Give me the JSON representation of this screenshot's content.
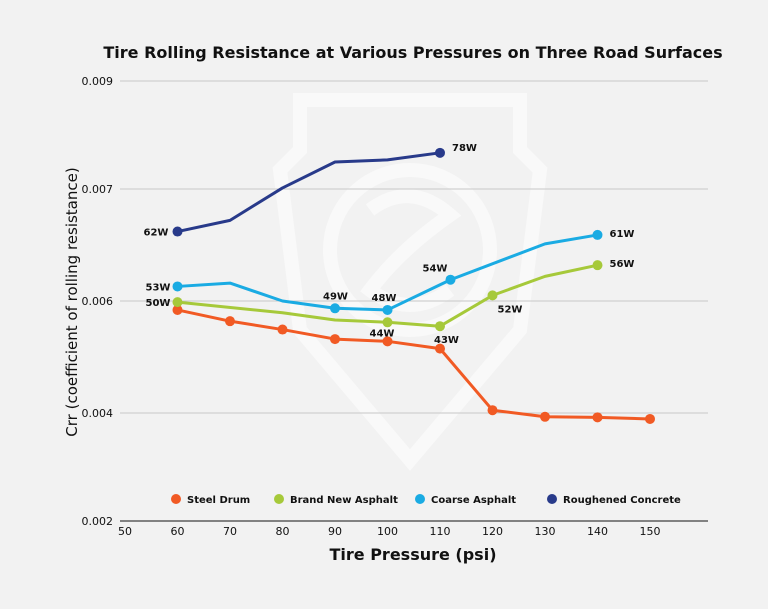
{
  "chart_data": {
    "type": "line",
    "title": "Tire Rolling Resistance at Various Pressures on Three Road Surfaces",
    "xlabel": "Tire Pressure (psi)",
    "ylabel": "Crr (coefficient of rolling resistance)",
    "xlim": [
      50,
      160
    ],
    "ylim": [
      0.002,
      0.009
    ],
    "x_ticks": [
      "50",
      "60",
      "70",
      "80",
      "90",
      "100",
      "110",
      "120",
      "130",
      "140",
      "150"
    ],
    "y_ticks": [
      {
        "value": 0.002,
        "label": "0.002"
      },
      {
        "value": 0.004,
        "label": "0.004"
      },
      {
        "value": 0.006,
        "label": "0.006"
      },
      {
        "value": 0.007,
        "label": "0.007"
      },
      {
        "value": 0.009,
        "label": "0.009"
      }
    ],
    "grid": "horizontal",
    "legend_position": "bottom",
    "series": [
      {
        "name": "Steel Drum",
        "color": "#f15a24",
        "points": [
          {
            "x": 60,
            "y": 0.00584,
            "marker": true
          },
          {
            "x": 70,
            "y": 0.00564,
            "marker": true
          },
          {
            "x": 80,
            "y": 0.00549,
            "marker": true
          },
          {
            "x": 90,
            "y": 0.00532,
            "marker": true
          },
          {
            "x": 100,
            "y": 0.00528,
            "marker": true
          },
          {
            "x": 110,
            "y": 0.00515,
            "marker": true
          },
          {
            "x": 120,
            "y": 0.00405,
            "marker": true
          },
          {
            "x": 130,
            "y": 0.00393,
            "marker": true
          },
          {
            "x": 140,
            "y": 0.00392,
            "marker": true
          },
          {
            "x": 150,
            "y": 0.00389,
            "marker": true
          }
        ]
      },
      {
        "name": "Brand New Asphalt",
        "color": "#a6c93a",
        "points": [
          {
            "x": 60,
            "y": 0.00598,
            "marker": true,
            "label": "50W"
          },
          {
            "x": 80,
            "y": 0.00579,
            "marker": false
          },
          {
            "x": 90,
            "y": 0.00566,
            "marker": false
          },
          {
            "x": 100,
            "y": 0.00562,
            "marker": true,
            "label": "44W"
          },
          {
            "x": 110,
            "y": 0.00555,
            "marker": true,
            "label": "43W"
          },
          {
            "x": 120,
            "y": 0.00605,
            "marker": true,
            "label": "52W"
          },
          {
            "x": 130,
            "y": 0.00622,
            "marker": false
          },
          {
            "x": 140,
            "y": 0.00632,
            "marker": true,
            "label": "56W"
          }
        ]
      },
      {
        "name": "Coarse Asphalt",
        "color": "#1aabe3",
        "points": [
          {
            "x": 60,
            "y": 0.00613,
            "marker": true,
            "label": "53W"
          },
          {
            "x": 70,
            "y": 0.00616,
            "marker": false
          },
          {
            "x": 80,
            "y": 0.006,
            "marker": false
          },
          {
            "x": 90,
            "y": 0.00587,
            "marker": true,
            "label": "49W"
          },
          {
            "x": 100,
            "y": 0.00584,
            "marker": true,
            "label": "48W"
          },
          {
            "x": 112,
            "y": 0.00619,
            "marker": true,
            "label": "54W"
          },
          {
            "x": 130,
            "y": 0.00651,
            "marker": false
          },
          {
            "x": 140,
            "y": 0.00659,
            "marker": true,
            "label": "61W"
          }
        ]
      },
      {
        "name": "Roughened Concrete",
        "color": "#283a8a",
        "points": [
          {
            "x": 60,
            "y": 0.00662,
            "marker": true,
            "label": "62W"
          },
          {
            "x": 70,
            "y": 0.00672,
            "marker": false
          },
          {
            "x": 80,
            "y": 0.00702,
            "marker": false
          },
          {
            "x": 90,
            "y": 0.0075,
            "marker": false
          },
          {
            "x": 100,
            "y": 0.00754,
            "marker": false
          },
          {
            "x": 110,
            "y": 0.00767,
            "marker": true,
            "label": "78W"
          }
        ]
      }
    ]
  }
}
